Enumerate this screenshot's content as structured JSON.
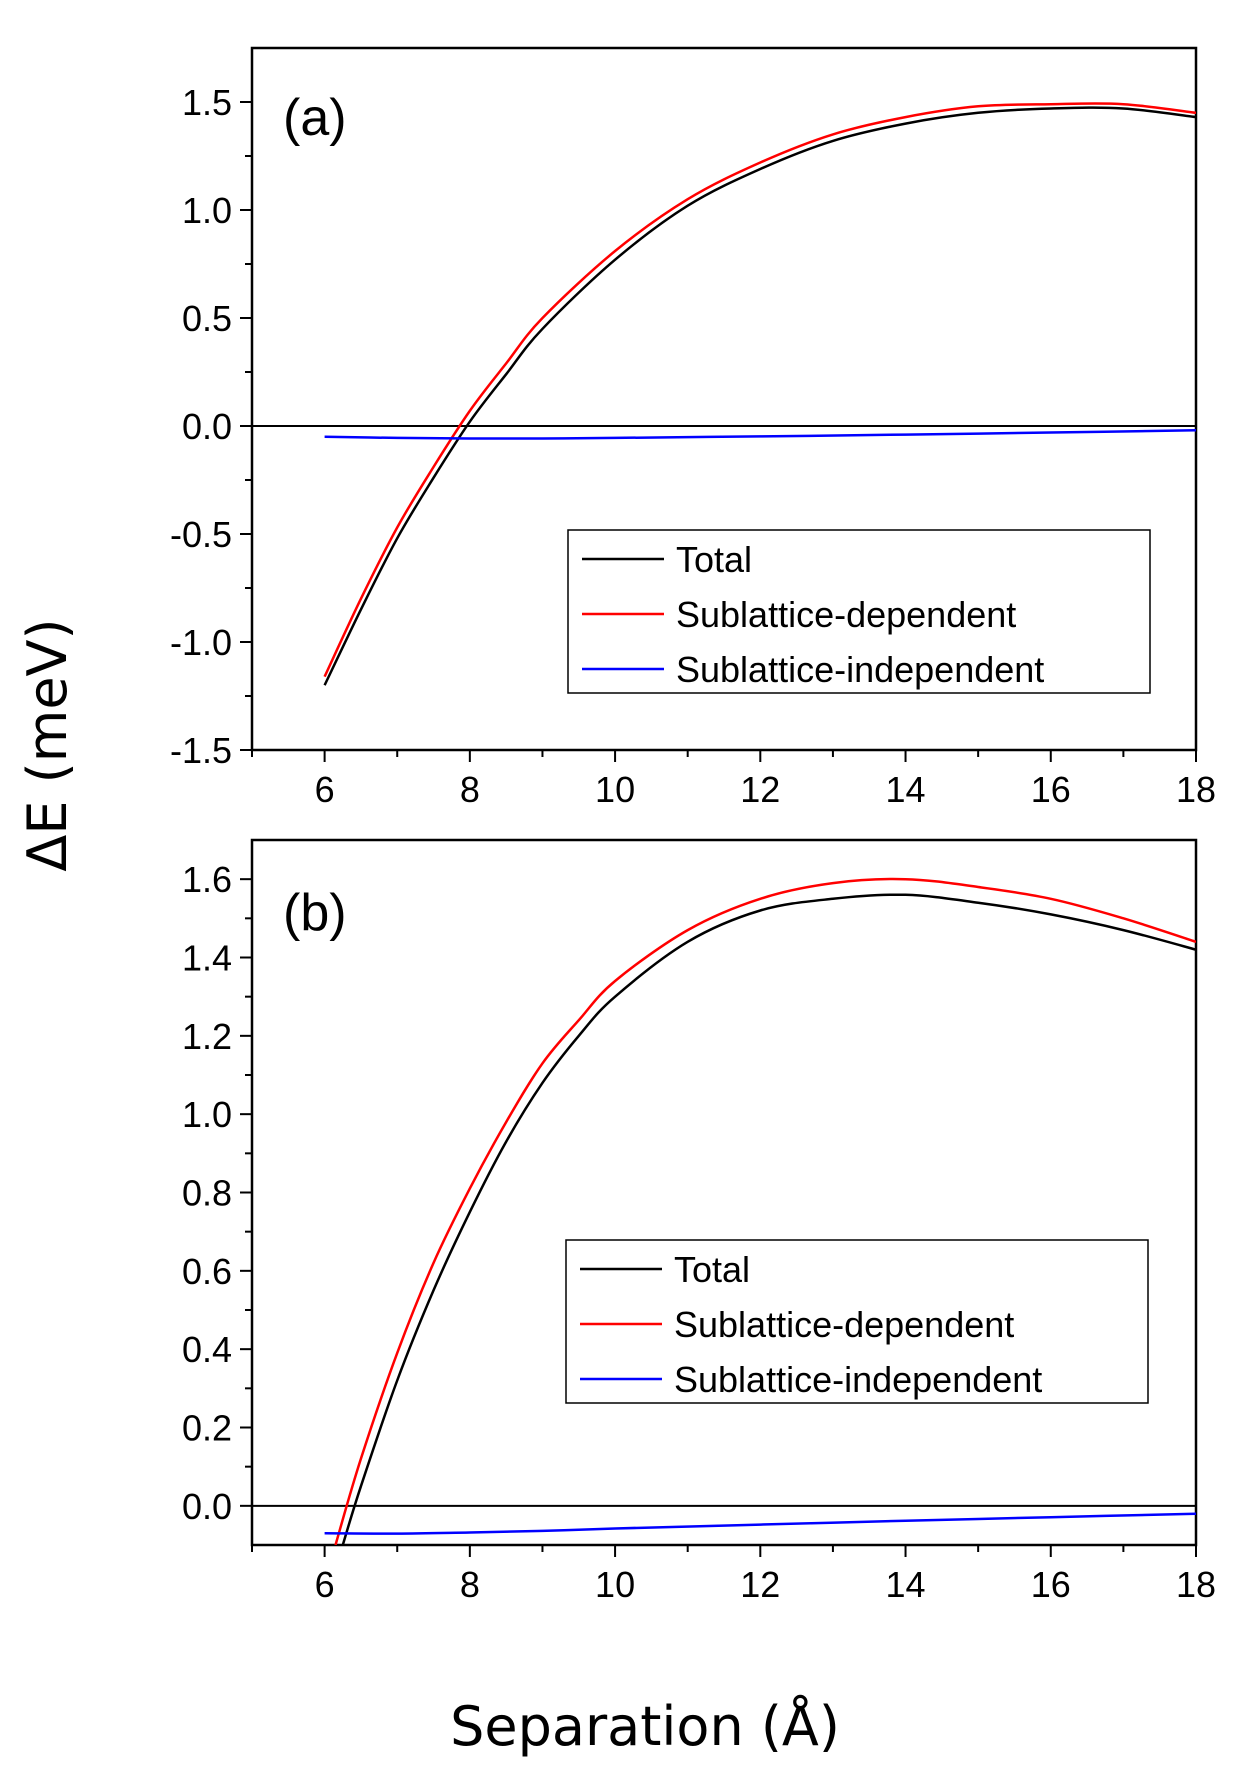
{
  "chart_data": [
    {
      "type": "line",
      "panel_label": "(a)",
      "xlim": [
        5,
        18
      ],
      "ylim": [
        -1.5,
        1.75
      ],
      "xticks": [
        6,
        8,
        10,
        12,
        14,
        16,
        18
      ],
      "xtick_labels": [
        "6",
        "8",
        "10",
        "12",
        "14",
        "16",
        "18"
      ],
      "yticks": [
        -1.5,
        -1.0,
        -0.5,
        0.0,
        0.5,
        1.0,
        1.5
      ],
      "ytick_labels": [
        "-1.5",
        "-1.0",
        "-0.5",
        "0.0",
        "0.5",
        "1.0",
        "1.5"
      ],
      "zero_line": 0,
      "legend_position": "lower-right",
      "series": [
        {
          "name": "Total",
          "color": "#000000",
          "x": [
            6,
            6.5,
            7,
            7.5,
            8,
            8.5,
            9,
            10,
            11,
            12,
            13,
            14,
            15,
            16,
            17,
            18
          ],
          "y": [
            -1.2,
            -0.85,
            -0.52,
            -0.24,
            0.02,
            0.24,
            0.45,
            0.77,
            1.02,
            1.19,
            1.32,
            1.4,
            1.45,
            1.47,
            1.47,
            1.43
          ]
        },
        {
          "name": "Sublattice-dependent",
          "color": "#ff0000",
          "x": [
            6,
            6.5,
            7,
            7.5,
            8,
            8.5,
            9,
            10,
            11,
            12,
            13,
            14,
            15,
            16,
            17,
            18
          ],
          "y": [
            -1.16,
            -0.8,
            -0.47,
            -0.19,
            0.07,
            0.29,
            0.5,
            0.81,
            1.05,
            1.22,
            1.35,
            1.43,
            1.48,
            1.49,
            1.49,
            1.45
          ]
        },
        {
          "name": "Sublattice-independent",
          "color": "#0000ff",
          "x": [
            6,
            7,
            8,
            9,
            10,
            12,
            14,
            16,
            18
          ],
          "y": [
            -0.05,
            -0.055,
            -0.058,
            -0.058,
            -0.055,
            -0.048,
            -0.04,
            -0.03,
            -0.02
          ]
        }
      ]
    },
    {
      "type": "line",
      "panel_label": "(b)",
      "xlim": [
        5,
        18
      ],
      "ylim": [
        -0.1,
        1.7
      ],
      "xticks": [
        6,
        8,
        10,
        12,
        14,
        16,
        18
      ],
      "xtick_labels": [
        "6",
        "8",
        "10",
        "12",
        "14",
        "16",
        "18"
      ],
      "yticks": [
        0.0,
        0.2,
        0.4,
        0.6,
        0.8,
        1.0,
        1.2,
        1.4,
        1.6
      ],
      "ytick_labels": [
        "0.0",
        "0.2",
        "0.4",
        "0.6",
        "0.8",
        "1.0",
        "1.2",
        "1.4",
        "1.6"
      ],
      "zero_line": 0,
      "legend_position": "lower-right",
      "series": [
        {
          "name": "Total",
          "color": "#000000",
          "x": [
            6.25,
            6.5,
            7,
            7.5,
            8,
            8.5,
            9,
            9.5,
            10,
            11,
            12,
            13,
            14,
            15,
            16,
            17,
            18
          ],
          "y": [
            -0.1,
            0.05,
            0.32,
            0.55,
            0.75,
            0.93,
            1.08,
            1.2,
            1.3,
            1.44,
            1.52,
            1.55,
            1.56,
            1.54,
            1.51,
            1.47,
            1.42
          ]
        },
        {
          "name": "Sublattice-dependent",
          "color": "#ff0000",
          "x": [
            6.15,
            6.5,
            7,
            7.5,
            8,
            8.5,
            9,
            9.5,
            10,
            11,
            12,
            13,
            14,
            15,
            16,
            17,
            18
          ],
          "y": [
            -0.1,
            0.12,
            0.39,
            0.62,
            0.81,
            0.98,
            1.13,
            1.24,
            1.34,
            1.47,
            1.55,
            1.59,
            1.6,
            1.58,
            1.55,
            1.5,
            1.44
          ]
        },
        {
          "name": "Sublattice-independent",
          "color": "#0000ff",
          "x": [
            6,
            7,
            8,
            9,
            10,
            12,
            14,
            16,
            18
          ],
          "y": [
            -0.07,
            -0.071,
            -0.068,
            -0.064,
            -0.058,
            -0.048,
            -0.038,
            -0.029,
            -0.02
          ]
        }
      ]
    }
  ],
  "ylabel": "ΔE (meV)",
  "xlabel": "Separation (Å)"
}
